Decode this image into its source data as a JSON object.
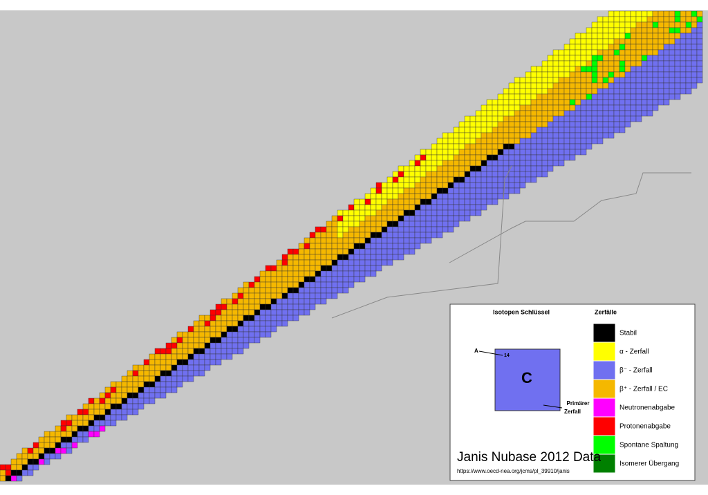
{
  "key": {
    "title": "Isotopen Schlüssel",
    "mass_label": "A",
    "mass_number": "14",
    "symbol": "C",
    "primary_decay": [
      "Primärer",
      "Zerfall"
    ]
  },
  "legend": {
    "title": "Zerfälle",
    "items": [
      {
        "label": "Stabil",
        "color": "#000000"
      },
      {
        "label": "α  - Zerfall",
        "color": "#ffff00"
      },
      {
        "label": "β⁻ - Zerfall",
        "color": "#7070f0"
      },
      {
        "label": "β⁺ - Zerfall / EC",
        "color": "#f5b800"
      },
      {
        "label": "Neutronenabgabe",
        "color": "#ff00ff"
      },
      {
        "label": "Protonenabgabe",
        "color": "#ff0000"
      },
      {
        "label": "Spontane Spaltung",
        "color": "#00ff00"
      },
      {
        "label": "Isomerer Übergang",
        "color": "#008000"
      }
    ]
  },
  "footer": {
    "title": "Janis Nubase 2012 Data",
    "url": "https://www.oecd-nea.org/jcms/pl_39910/janis"
  }
}
